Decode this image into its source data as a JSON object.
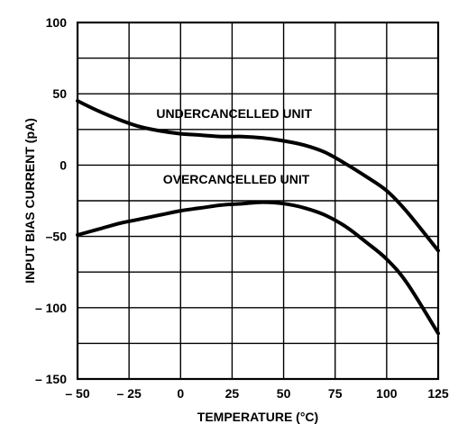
{
  "chart_data": {
    "type": "line",
    "xlabel": "TEMPERATURE (°C)",
    "ylabel": "INPUT BIAS CURRENT (pA)",
    "xlim": [
      -50,
      125
    ],
    "ylim": [
      -150,
      100
    ],
    "grid": true,
    "x_ticks": [
      -50,
      -25,
      0,
      25,
      50,
      75,
      100,
      125
    ],
    "y_ticks": [
      100,
      50,
      0,
      -50,
      -100,
      -150
    ],
    "x_tick_labels": [
      "– 50",
      "– 25",
      "0",
      "25",
      "50",
      "75",
      "100",
      "125"
    ],
    "y_tick_labels": [
      "100",
      "50",
      "0",
      "–50",
      "– 100",
      "– 150"
    ],
    "series": [
      {
        "name": "UNDERCANCELLED UNIT",
        "x": [
          -50,
          -40,
          -30,
          -20,
          -10,
          0,
          10,
          20,
          30,
          40,
          50,
          60,
          70,
          80,
          90,
          100,
          110,
          125
        ],
        "y": [
          45,
          38,
          32,
          27,
          24,
          22,
          21,
          20,
          20,
          19,
          17,
          14,
          9,
          1,
          -8,
          -18,
          -33,
          -60
        ]
      },
      {
        "name": "OVERCANCELLED UNIT",
        "x": [
          -50,
          -40,
          -30,
          -20,
          -10,
          0,
          10,
          20,
          30,
          40,
          50,
          60,
          70,
          80,
          90,
          100,
          110,
          125
        ],
        "y": [
          -49,
          -45,
          -41,
          -38,
          -35,
          -32,
          -30,
          -28,
          -27,
          -26,
          -27,
          -30,
          -35,
          -43,
          -54,
          -66,
          -83,
          -118
        ]
      }
    ]
  }
}
